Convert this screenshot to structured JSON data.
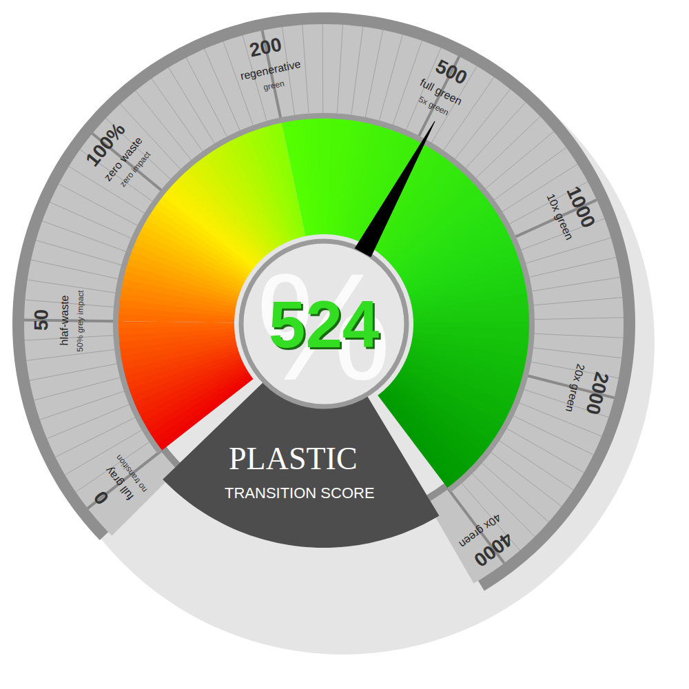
{
  "chart_data": {
    "type": "gauge",
    "title": "PLASTIC",
    "subtitle": "TRANSITION SCORE",
    "value": 524,
    "value_symbol": "%",
    "ticks": [
      {
        "value": 0,
        "label": "0",
        "text": "full gray",
        "note": "no transition"
      },
      {
        "value": 50,
        "label": "50",
        "text": "hlaf-waste",
        "note": "50% grey impact"
      },
      {
        "value": 100,
        "label": "100%",
        "text": "zero waste",
        "note": "zero impact"
      },
      {
        "value": 200,
        "label": "200",
        "text": "regenerative",
        "note": "green"
      },
      {
        "value": 500,
        "label": "500",
        "text": "full green",
        "note": "5x green"
      },
      {
        "value": 1000,
        "label": "1000",
        "text": "10x green"
      },
      {
        "value": 2000,
        "label": "2000",
        "text": "20x green"
      },
      {
        "value": 4000,
        "label": "4000",
        "text": "40x green"
      }
    ],
    "bands": [
      {
        "from": 0,
        "to": 50,
        "colors": [
          "#ee0000",
          "#ff6a00"
        ]
      },
      {
        "from": 50,
        "to": 200,
        "colors": [
          "#ff6a00",
          "#ffee00",
          "#88ff00"
        ]
      },
      {
        "from": 200,
        "to": 4000,
        "colors": [
          "#55ff00",
          "#22dd11",
          "#009900"
        ]
      }
    ]
  }
}
